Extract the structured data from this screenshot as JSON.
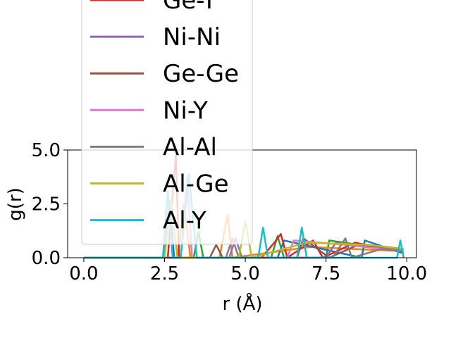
{
  "chart_data": {
    "type": "line",
    "xlabel": "r (Å)",
    "ylabel": "g(r)",
    "xlim": [
      -0.5,
      10.3
    ],
    "ylim": [
      0,
      5
    ],
    "xticks": [
      "0.0",
      "2.5",
      "5.0",
      "7.5",
      "10.0"
    ],
    "xtick_values": [
      0,
      2.5,
      5,
      7.5,
      10
    ],
    "yticks": [
      "0.0",
      "2.5",
      "5.0"
    ],
    "ytick_values": [
      0,
      2.5,
      5
    ],
    "grid": false,
    "legend_position": "upper-left",
    "series": [
      {
        "name": "Ge-Y",
        "color": "#d62728",
        "x": [
          0,
          2.6,
          2.85,
          2.95,
          3.1,
          4,
          5.5,
          5.9,
          6.1,
          6.3,
          7.1,
          7.4,
          8.4,
          9.1,
          9.9
        ],
        "y": [
          0,
          0,
          4.8,
          0,
          0,
          0,
          0,
          0.7,
          1.1,
          0,
          0.8,
          0,
          0.7,
          0.5,
          0.4
        ]
      },
      {
        "name": "Ni-Ni",
        "color": "#9467bd",
        "x": [
          0,
          4.5,
          4.7,
          4.9,
          5.2,
          7.5,
          7.8,
          8.9,
          9.9
        ],
        "y": [
          0,
          0,
          0.9,
          0,
          0,
          0,
          0.7,
          0.5,
          0.3
        ]
      },
      {
        "name": "Ge-Ge",
        "color": "#8c564b",
        "x": [
          0,
          3.9,
          4.1,
          4.3,
          5.7,
          6.6,
          6.8,
          7.6,
          8.5,
          9.4,
          9.9
        ],
        "y": [
          0,
          0,
          0.6,
          0,
          0,
          0,
          0.9,
          0,
          0.6,
          0.5,
          0.4
        ]
      },
      {
        "name": "Ni-Y",
        "color": "#e377c2",
        "x": [
          0,
          3,
          3.2,
          3.35,
          5.4,
          6.3,
          6.5,
          8.1,
          9.9
        ],
        "y": [
          0,
          0,
          3.7,
          0,
          0,
          0,
          0.8,
          0.6,
          0.3
        ]
      },
      {
        "name": "Al-Al",
        "color": "#7f7f7f",
        "x": [
          0,
          4.4,
          4.6,
          4.8,
          6.5,
          7.7,
          8.1,
          8.3,
          9.2,
          9.9
        ],
        "y": [
          0,
          0,
          0.9,
          0,
          0,
          0,
          0.9,
          0,
          0.4,
          0.3
        ]
      },
      {
        "name": "Al-Ge",
        "color": "#bcbd22",
        "x": [
          0,
          2.5,
          2.7,
          2.9,
          4.8,
          5,
          5.2,
          6.9,
          8.8,
          9.9
        ],
        "y": [
          0,
          0,
          2.7,
          0,
          0,
          1.7,
          0,
          0.7,
          0.6,
          0.4
        ]
      },
      {
        "name": "Al-Y",
        "color": "#17becf",
        "x": [
          0,
          2.45,
          2.6,
          2.75,
          3,
          3.25,
          3.5,
          5.4,
          5.55,
          5.7,
          6.6,
          6.75,
          6.9,
          9.7,
          9.8,
          9.9
        ],
        "y": [
          0,
          0,
          3.1,
          0,
          0,
          3.9,
          0,
          0,
          1.4,
          0,
          0,
          1.4,
          0,
          0,
          0.8,
          0
        ]
      },
      {
        "name": "",
        "color": "#2ca02c",
        "x": [
          0,
          3.4,
          3.55,
          3.7,
          5.8,
          6,
          6.2,
          7.5,
          7.6,
          9.9
        ],
        "y": [
          0,
          0,
          1.2,
          0,
          0,
          1.0,
          0,
          0,
          0.8,
          0.3
        ]
      },
      {
        "name": "",
        "color": "#ff7f0e",
        "x": [
          0,
          2.9,
          3.1,
          3.3,
          4.2,
          4.45,
          4.6,
          7,
          9.9
        ],
        "y": [
          0,
          0,
          2.5,
          0,
          0,
          2.0,
          0,
          0.5,
          0.3
        ]
      },
      {
        "name": "",
        "color": "#1f77b4",
        "x": [
          0,
          2.5,
          2.65,
          2.8,
          6.0,
          6.2,
          8.6,
          8.7,
          9.9
        ],
        "y": [
          0,
          0,
          2.6,
          0,
          0,
          0.8,
          0,
          0.8,
          0.2
        ]
      }
    ]
  }
}
